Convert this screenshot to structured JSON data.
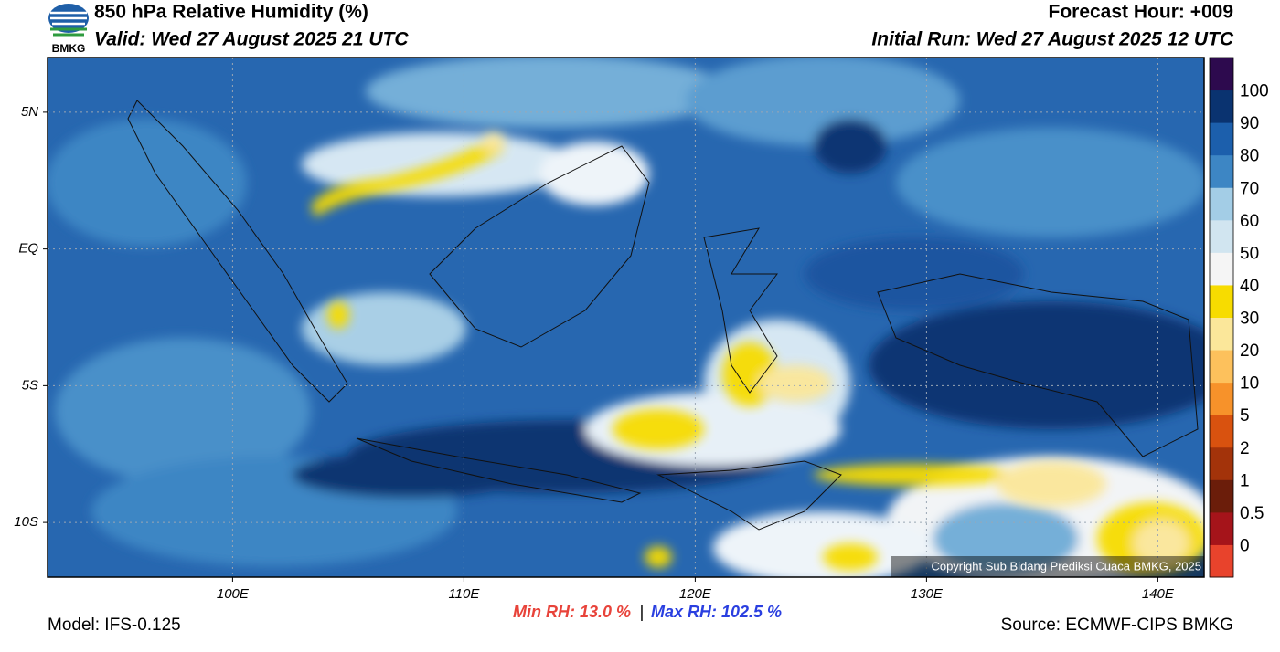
{
  "header": {
    "logo_text": "BMKG",
    "title": "850 hPa Relative Humidity (%)",
    "valid": "Valid: Wed 27 August 2025 21 UTC",
    "forecast_hour": "Forecast Hour: +009",
    "initial_run": "Initial Run: Wed 27 August 2025 12 UTC"
  },
  "map": {
    "xlim": [
      92,
      142
    ],
    "ylim": [
      -12,
      7
    ],
    "xticks": [
      {
        "value": 100,
        "label": "100E"
      },
      {
        "value": 110,
        "label": "110E"
      },
      {
        "value": 120,
        "label": "120E"
      },
      {
        "value": 130,
        "label": "130E"
      },
      {
        "value": 140,
        "label": "140E"
      }
    ],
    "yticks": [
      {
        "value": 5,
        "label": "5N"
      },
      {
        "value": 0,
        "label": "EQ"
      },
      {
        "value": -5,
        "label": "5S"
      },
      {
        "value": -10,
        "label": "10S"
      }
    ],
    "grid": true,
    "copyright": "Copyright Sub Bidang Prediksi Cuaca BMKG, 2025"
  },
  "colorbar": {
    "levels": [
      0,
      0.5,
      1,
      2,
      5,
      10,
      20,
      30,
      40,
      50,
      60,
      70,
      80,
      90,
      100
    ],
    "colors": [
      "#e8432c",
      "#a5141a",
      "#6b1d0a",
      "#a3330a",
      "#d9520f",
      "#f7922a",
      "#fdc15c",
      "#fbe79a",
      "#f7dc00",
      "#f5f5f5",
      "#d1e5f0",
      "#a3cde6",
      "#3d86c4",
      "#1c5fac",
      "#0a3370",
      "#2d0a4e"
    ]
  },
  "footer": {
    "model": "Model: IFS-0.125",
    "min_rh": "Min RH:  13.0 %",
    "separator": "|",
    "max_rh": "Max RH: 102.5 %",
    "source": "Source: ECMWF-CIPS BMKG"
  }
}
